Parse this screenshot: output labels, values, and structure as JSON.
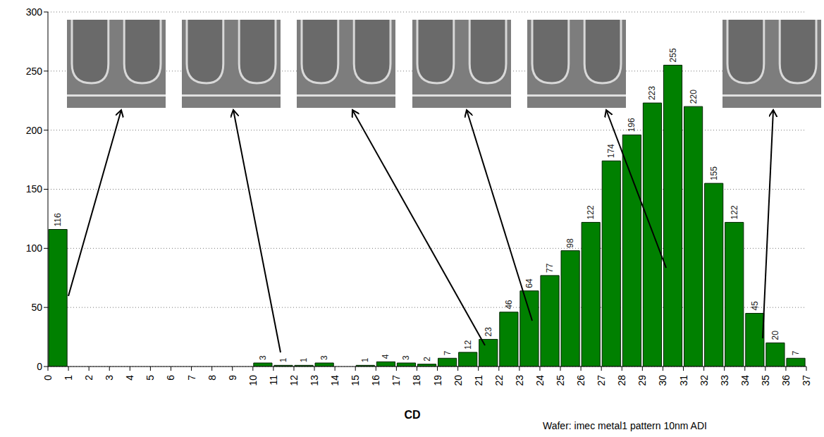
{
  "chart_data": {
    "type": "histogram",
    "xlabel": "CD",
    "annotations": [
      "Wafer: imec metal1 pattern 10nm ADI"
    ],
    "bins": [
      0,
      1,
      2,
      3,
      4,
      5,
      6,
      7,
      8,
      9,
      10,
      11,
      12,
      13,
      14,
      15,
      16,
      17,
      18,
      19,
      20,
      21,
      22,
      23,
      24,
      25,
      26,
      27,
      28,
      29,
      30,
      31,
      32,
      33,
      34,
      35,
      36,
      37
    ],
    "values": [
      116,
      0,
      0,
      0,
      0,
      0,
      0,
      0,
      0,
      0,
      3,
      1,
      1,
      3,
      0,
      1,
      4,
      3,
      2,
      7,
      12,
      23,
      46,
      64,
      77,
      98,
      122,
      174,
      196,
      223,
      255,
      220,
      155,
      122,
      45,
      20,
      7
    ],
    "color": "#008000",
    "xlim": [
      0,
      37
    ],
    "xticks": [
      0,
      1,
      2,
      3,
      4,
      5,
      6,
      7,
      8,
      9,
      10,
      11,
      12,
      13,
      14,
      15,
      16,
      17,
      18,
      19,
      20,
      21,
      22,
      23,
      24,
      25,
      26,
      27,
      28,
      29,
      30,
      31,
      32,
      33,
      34,
      35,
      36,
      37
    ],
    "ylim": [
      0,
      300
    ],
    "yticks": [
      0,
      50,
      100,
      150,
      200,
      250,
      300
    ],
    "grid": true,
    "data_labels": true
  }
}
